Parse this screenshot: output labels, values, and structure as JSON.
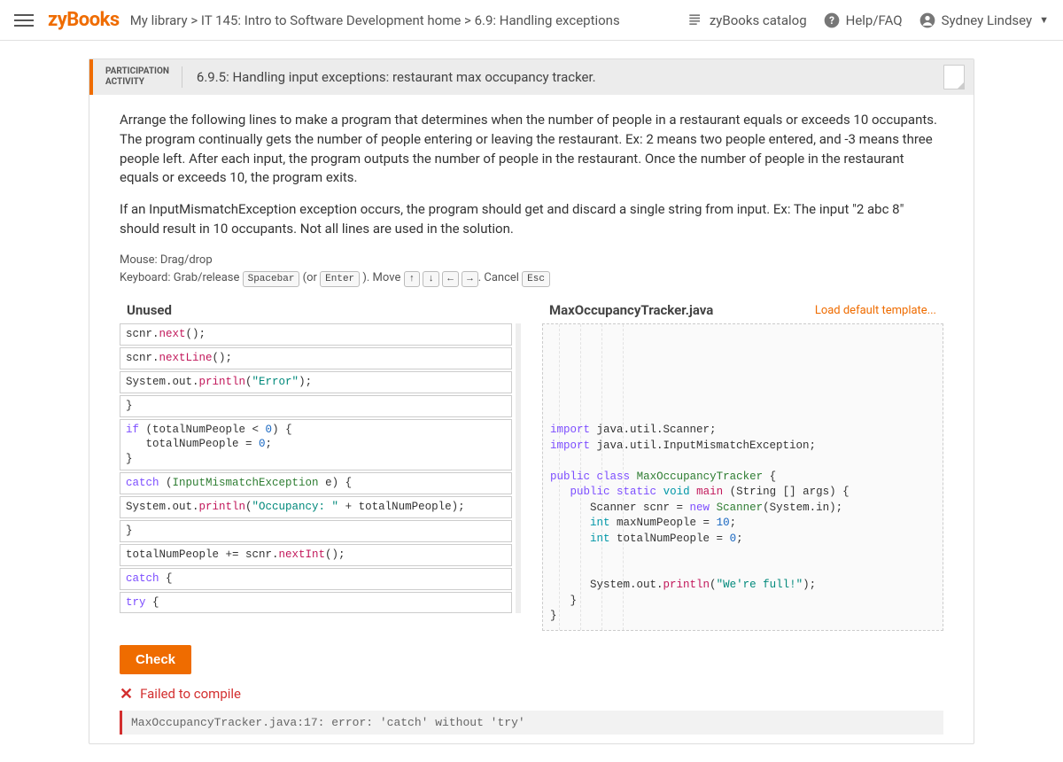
{
  "header": {
    "brand": "zyBooks",
    "breadcrumb": "My library > IT 145: Intro to Software Development home > 6.9: Handling exceptions",
    "catalog": "zyBooks catalog",
    "help": "Help/FAQ",
    "user": "Sydney Lindsey"
  },
  "activity": {
    "tag_line1": "PARTICIPATION",
    "tag_line2": "ACTIVITY",
    "title": "6.9.5: Handling input exceptions: restaurant max occupancy tracker."
  },
  "instructions": {
    "p1": "Arrange the following lines to make a program that determines when the number of people in a restaurant equals or exceeds 10 occupants. The program continually gets the number of people entering or leaving the restaurant. Ex: 2 means two people entered, and -3 means three people left. After each input, the program outputs the number of people in the restaurant. Once the number of people in the restaurant equals or exceeds 10, the program exits.",
    "p2": "If an InputMismatchException exception occurs, the program should get and discard a single string from input. Ex: The input \"2 abc 8\" should result in 10 occupants. Not all lines are used in the solution.",
    "mouse": "Mouse: Drag/drop",
    "kb_prefix": "Keyboard: Grab/release ",
    "kb_space": "Spacebar",
    "kb_or": " (or ",
    "kb_enter": "Enter",
    "kb_move": " ). Move ",
    "kb_up": "↑",
    "kb_down": "↓",
    "kb_left": "←",
    "kb_right": "→",
    "kb_cancel": ". Cancel ",
    "kb_esc": "Esc"
  },
  "columns": {
    "unused": "Unused",
    "filename": "MaxOccupancyTracker.java",
    "load": "Load default template..."
  },
  "unused_lines": [
    "scnr.next();",
    "scnr.nextLine();",
    "System.out.println(\"Error\");",
    "}",
    "if (totalNumPeople < 0) {\n   totalNumPeople = 0;\n}",
    "catch (InputMismatchException e) {",
    "System.out.println(\"Occupancy: \" + totalNumPeople);",
    "}",
    "totalNumPeople += scnr.nextInt();",
    "catch {",
    "try {"
  ],
  "check": "Check",
  "error": {
    "msg": "Failed to compile",
    "detail": "MaxOccupancyTracker.java:17: error: 'catch' without 'try'"
  },
  "colors": {
    "accent": "#ef6c00",
    "error": "#d32f2f",
    "keyword": "#7c4dff",
    "type": "#0097a7",
    "class": "#2e7d32",
    "func": "#c2185b",
    "string": "#00897b",
    "number": "#1565c0"
  }
}
